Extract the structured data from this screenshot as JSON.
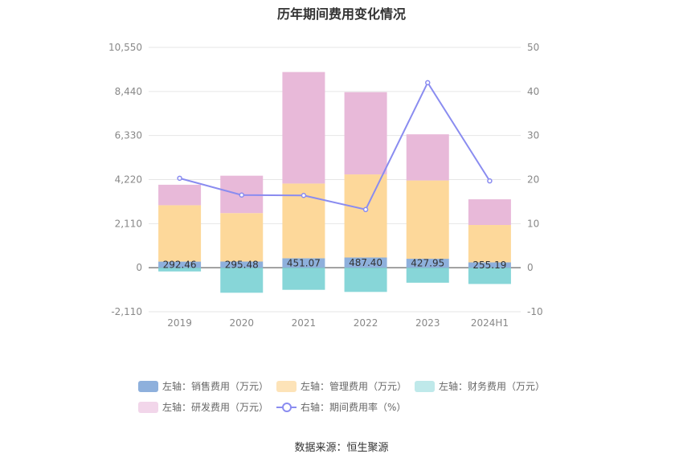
{
  "chart_data": {
    "type": "bar",
    "title": "历年期间费用变化情况",
    "categories": [
      "2019",
      "2020",
      "2021",
      "2022",
      "2023",
      "2024H1"
    ],
    "left_axis": {
      "ticks": [
        "10,550",
        "8,440",
        "6,330",
        "4,220",
        "2,110",
        "0",
        "-2,110"
      ],
      "ylim": [
        -2110,
        10550
      ]
    },
    "right_axis": {
      "ticks": [
        "50",
        "40",
        "30",
        "20",
        "10",
        "0",
        "-10"
      ],
      "ylim": [
        -10,
        50
      ]
    },
    "series": [
      {
        "name": "左轴：销售费用（万元）",
        "kind": "bar",
        "color": "#8eb0dc",
        "values": [
          292.46,
          295.48,
          451.07,
          487.4,
          427.95,
          255.19
        ],
        "labels": [
          "292.46",
          "295.48",
          "451.07",
          "487.40",
          "427.95",
          "255.19"
        ]
      },
      {
        "name": "左轴：管理费用（万元）",
        "kind": "bar",
        "color": "#fdd89a",
        "values": [
          2700,
          2320,
          3580,
          3980,
          3750,
          1790
        ]
      },
      {
        "name": "左轴：财务费用（万元）",
        "kind": "bar",
        "color": "#87d6d8",
        "values": [
          -180,
          -1200,
          -1060,
          -1160,
          -720,
          -780
        ]
      },
      {
        "name": "左轴：研发费用（万元）",
        "kind": "bar",
        "color": "#e8b9d9",
        "values": [
          980,
          1790,
          5340,
          3940,
          2210,
          1230
        ]
      },
      {
        "name": "右轴：期间费用率（%）",
        "kind": "line",
        "color": "#8a8cf0",
        "values": [
          20.3,
          16.5,
          16.4,
          13.2,
          42.0,
          19.7
        ]
      }
    ]
  },
  "legend": [
    {
      "label": "左轴：销售费用（万元）",
      "color": "#8eb0dc",
      "kind": "bar"
    },
    {
      "label": "左轴：管理费用（万元）",
      "color": "#fde3b8",
      "kind": "bar"
    },
    {
      "label": "左轴：财务费用（万元）",
      "color": "#bfe9ea",
      "kind": "bar"
    },
    {
      "label": "左轴：研发费用（万元）",
      "color": "#f2d6ea",
      "kind": "bar"
    },
    {
      "label": "右轴：期间费用率（%）",
      "color": "#8a8cf0",
      "kind": "line"
    }
  ],
  "source": "数据来源：恒生聚源"
}
